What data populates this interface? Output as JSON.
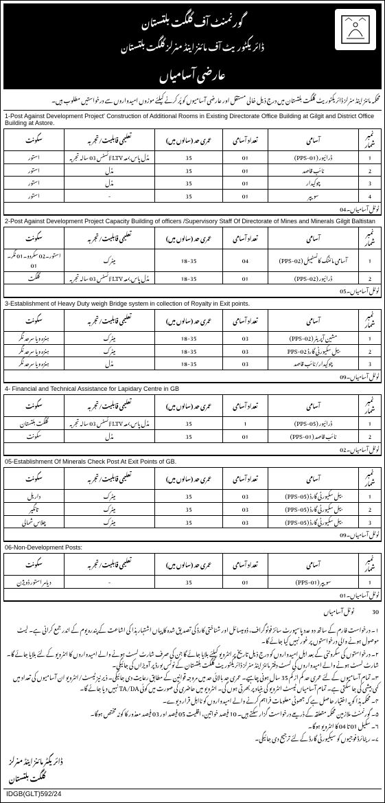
{
  "header": {
    "line1": "گورنمنٹ آف گلگت بلتستان",
    "line2": "ڈائریکٹوریٹ آف مائنز اینڈ منرلز گلگت بلتستان",
    "line3": "عارضی آسامیاں"
  },
  "intro": "محکمہ مائنز اینڈ منرلز ڈائریکٹوریٹ گلگت بلتستان میں درج ذیل خالی مستقل اور عارضی آسامیوں کو پُر کرنے کیلئے موزوں امیدواروں سے درخواستیں مطلوب ہیں۔",
  "columns": {
    "sr": "نمبر شمار",
    "post": "آسامی",
    "qty": "تعداد آسامی",
    "age": "عمری حد (سالوں میں)",
    "qual": "تعلیمی قابلیت/تجربہ",
    "loc": "سکونت"
  },
  "sections": [
    {
      "title": "1-Post Against Development Project' Construction of Additional Rooms in Existing Directorate Office Building at Gilgit and District Office Building at Astore.",
      "rows": [
        {
          "sr": "1",
          "post": "ڈرائیور (PPS-01)",
          "qty": "01",
          "age": "35",
          "qual": "مڈل پاس بمعہ LTV لائسنس 03 سالہ تجربہ",
          "loc": "استور"
        },
        {
          "sr": "2",
          "post": "نائب قاصد",
          "qty": "01",
          "age": "35",
          "qual": "مڈل",
          "loc": "استور"
        },
        {
          "sr": "3",
          "post": "چوکیدار",
          "qty": "01",
          "age": "35",
          "qual": "مڈل",
          "loc": "استور"
        },
        {
          "sr": "4",
          "post": "سویپر",
          "qty": "01",
          "age": "35",
          "qual": "-",
          "loc": "استور"
        }
      ],
      "total": "ٹوٹل آسامیاں۔04"
    },
    {
      "title": "2-Post Against Development Project Capacity Building of officers /Supervisory Staff Of Directorate of Mines and Minerals Gilgit Baltistan",
      "rows": [
        {
          "sr": "1",
          "post": "آسامی مائننگ کانسٹیبل (PPS-02)",
          "qty": "04",
          "age": "18-35",
          "qual": "میٹرک",
          "loc": "استور۔02 سکردو۔01 نگر۔01"
        },
        {
          "sr": "2",
          "post": "ڈرائیور (PPS-02)",
          "qty": "01",
          "age": "18-35",
          "qual": "مڈل پاس بمعہ LTV لائسنس 03 سالہ تجربہ",
          "loc": "گلگت"
        }
      ],
      "total": "ٹوٹل آسامیاں۔05"
    },
    {
      "title": "3-Establishment of Heavy Duty weigh Bridge system in collection of Royalty in Exit points.",
      "rows": [
        {
          "sr": "1",
          "post": "مشین آپریٹر (PPS-02)",
          "qty": "03",
          "age": "18-35",
          "qual": "میٹرک",
          "loc": "ہنزہ ویا سرحد نگر"
        },
        {
          "sr": "2",
          "post": "بیل سکیورٹی گارڈ PPS-02",
          "qty": "03",
          "age": "18-35",
          "qual": "میٹرک",
          "loc": "ہنزہ ویا سرحد نگر"
        },
        {
          "sr": "3",
          "post": "چوکیدار/نائب قاصد",
          "qty": "03",
          "age": "18-35",
          "qual": "مڈل",
          "loc": "ہنزہ ویا سرحد نگر"
        }
      ],
      "total": "ٹوٹل آسامیاں۔09"
    },
    {
      "title": "4- Financial and Technical Assistance for Lapidary Centre in GB",
      "rows": [
        {
          "sr": "1",
          "post": "ڈرائیور (PPS-05)",
          "qty": "1",
          "age": "35",
          "qual": "مڈل پاس بمعہ LTV لائسنس 03 سالہ تجربہ",
          "loc": "گلگت بلتستان"
        },
        {
          "sr": "2",
          "post": "نائب قاصد (PPS-01)",
          "qty": "01",
          "age": "35",
          "qual": "مڈل",
          "loc": "سکونت"
        }
      ],
      "total": "ٹوٹل آسامیاں۔02"
    },
    {
      "title": "05-Establishment Of Minerals Check Post At Exit Points of GB.",
      "rows": [
        {
          "sr": "1",
          "post": "بیل سکیورٹی گارڈ (PPS-05)",
          "qty": "03",
          "age": "35",
          "qual": "میٹرک",
          "loc": "داریل"
        },
        {
          "sr": "2",
          "post": "بیل سکیورٹی گارڈ (PPS-05)",
          "qty": "03",
          "age": "35",
          "qual": "میٹرک",
          "loc": "تانگیر"
        },
        {
          "sr": "3",
          "post": "بیل سکیورٹی گارڈ (PPS-05)",
          "qty": "03",
          "age": "35",
          "qual": "میٹرک",
          "loc": "چلاس شمالی"
        }
      ],
      "total": "ٹوٹل آسامیاں۔09"
    },
    {
      "title": "06-Non-Development Posts:",
      "rows": [
        {
          "sr": "1",
          "post": "سویپر (PPS-01)",
          "qty": "01",
          "age": "35",
          "qual": "-",
          "loc": "دیامر استور ڈویژن"
        }
      ],
      "total": "ٹوٹل آسامیاں۔01"
    }
  ],
  "grand_total_label": "ٹوٹل آسامیاں",
  "grand_total_value": "30",
  "notes": [
    "۱۔ درخواست فارم کے ساتھ دو عدد پاسپورٹ سائز فوٹوگراف، ڈومیسائل اور شناختی کارڈ کی تصدیق شدہ کاپیاں اشتہار ہذا کی اشاعت کے پندرہ یوم کے اندر جمع کرانی ہے۔ لیٹ موصول ہونے والی درخواستوں پر غور نہیں کیا جائے گا۔",
    "۲۔ درخواستوں کی سکروٹنی کے بعد اہل امیدواروں کو درج ذیل تاریخ پر انٹرویو کیلئے بلایا جائے گا جن کی صرف شارٹ لسٹ ہونے والے امیدواروں کا انٹرویو کے لئے بلایا جائے گا۔ شارٹ لسٹ ہونے والے امیدواروں کی لسٹ دفتر مائنز اینڈ منرلز ڈائریکٹوریٹ گلگت بلتستان کے نوٹس بورڈ پر آویزاں کی جائیگی۔",
    "۳۔ تمام آسامیوں کے لئے عمری حد کم از کم 35 سال ہونی چاہیے۔ عمری حد بالائی حد میں مروجہ قوانین کے مطابق رعایت دی جائیگی۔ ذیر نیز ٹیسٹ/انٹرویو ان آسامیوں کی تعداد میں کمی بیشی کی جا سکتی ہے۔ تمام آسامیاں ٹیسٹ انٹرویو کی بنیاد پر بھرتی ہوں گی۔ انٹرویو میں حاضری کی صورت میں کوئی TA/DA نہیں دیا جائے گا۔",
    "۴۔ محکمہ ہذا کو یہ اختیار حاصل ہے کہ جھوٹی معلومات فراہم کرنے والے امیدواروں کو نااہل قرار دیوے۔",
    "۵۔ گورنمنٹ ملازمین محکمہ متعلقہ کے ذریعے درخواست گزار سکتے ہیں۔ 10 فیصد خواتین، اقلیت 05 فیصد اور 03 فیصد معذور کا کوٹہ مختص ہوگا۔",
    "۶۔ سکیل 01 تا 04 کا انٹرویو ہوگا۔",
    "۷۔ ریٹائرڈ فوجیوں کو سیکیورٹی گارڈ کے لئے ترجیح دی جائیگی۔"
  ],
  "signature": {
    "line1": "ڈائریکٹر مائنز اینڈ منرلز",
    "line2": "گلگت بلتستان"
  },
  "ref": "IDGB(GLT)592/24"
}
